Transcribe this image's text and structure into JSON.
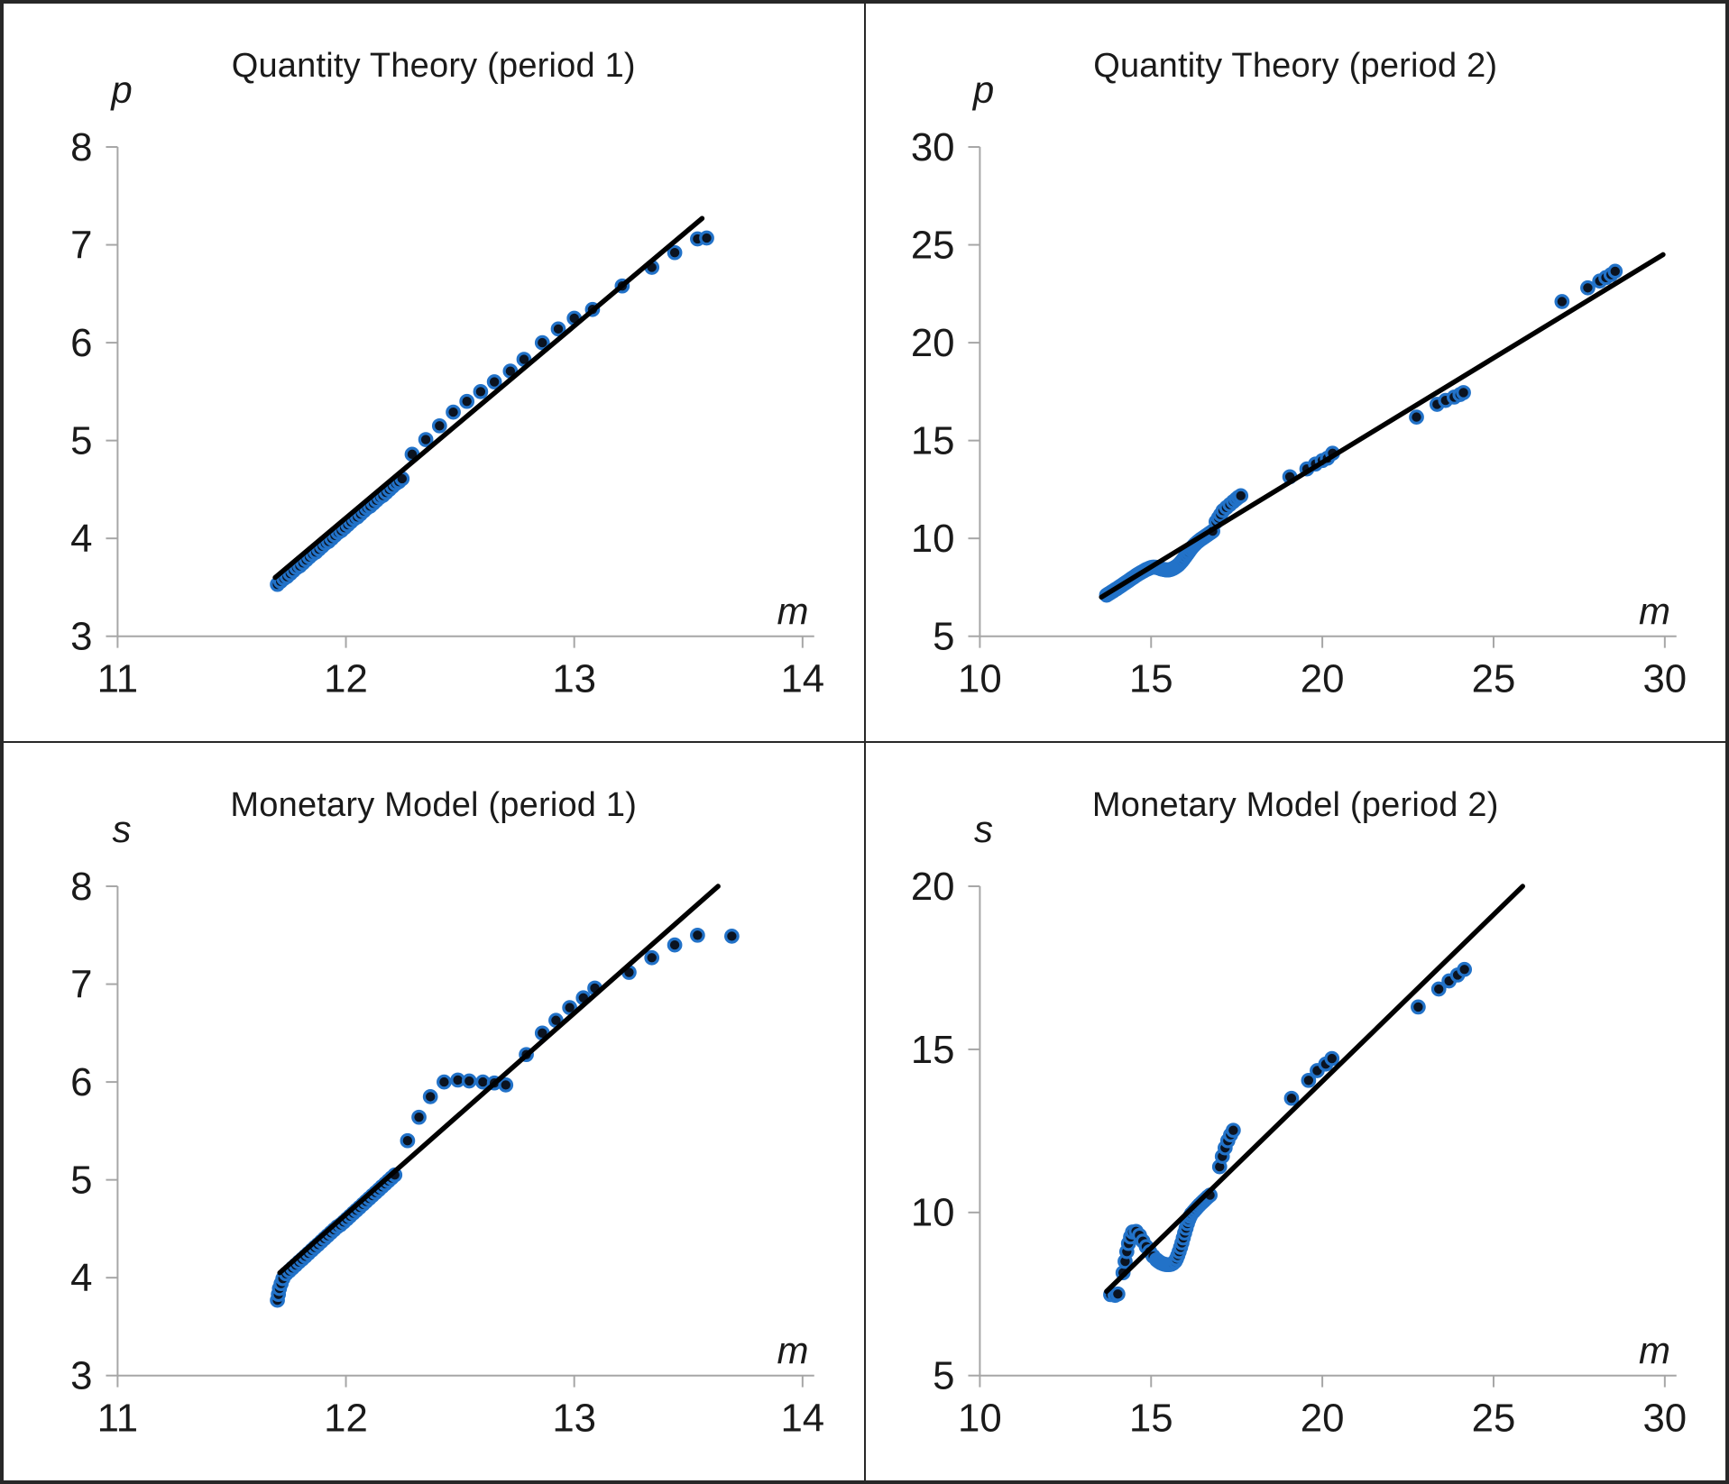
{
  "style": {
    "marker_fill": "#0b1320",
    "marker_stroke": "#2272c8",
    "trend_color": "#000000",
    "axis_color": "#a6a6a6",
    "text_color": "#1a1a1a",
    "background": "#ffffff",
    "border_color": "#282828"
  },
  "chart_data": [
    {
      "type": "scatter",
      "title": "Quantity Theory (period 1)",
      "ylabel": "p",
      "xlabel": "m",
      "xlim": [
        11,
        14
      ],
      "ylim": [
        3,
        8
      ],
      "xticks": [
        11,
        12,
        13,
        14
      ],
      "yticks": [
        3,
        4,
        5,
        6,
        7,
        8
      ],
      "grid": false,
      "legend": false,
      "trend_line": {
        "x1": 11.69,
        "y1": 3.6,
        "x2": 13.56,
        "y2": 7.27
      },
      "points": [
        [
          11.7,
          3.53
        ],
        [
          11.714,
          3.56
        ],
        [
          11.728,
          3.59
        ],
        [
          11.742,
          3.61
        ],
        [
          11.756,
          3.64
        ],
        [
          11.77,
          3.67
        ],
        [
          11.784,
          3.7
        ],
        [
          11.798,
          3.72
        ],
        [
          11.812,
          3.75
        ],
        [
          11.826,
          3.78
        ],
        [
          11.84,
          3.81
        ],
        [
          11.854,
          3.84
        ],
        [
          11.868,
          3.86
        ],
        [
          11.882,
          3.89
        ],
        [
          11.896,
          3.92
        ],
        [
          11.91,
          3.95
        ],
        [
          11.924,
          3.97
        ],
        [
          11.938,
          4.0
        ],
        [
          11.952,
          4.03
        ],
        [
          11.966,
          4.06
        ],
        [
          11.98,
          4.08
        ],
        [
          11.994,
          4.11
        ],
        [
          12.008,
          4.14
        ],
        [
          12.022,
          4.17
        ],
        [
          12.036,
          4.2
        ],
        [
          12.05,
          4.22
        ],
        [
          12.064,
          4.25
        ],
        [
          12.078,
          4.28
        ],
        [
          12.092,
          4.31
        ],
        [
          12.106,
          4.33
        ],
        [
          12.12,
          4.36
        ],
        [
          12.134,
          4.39
        ],
        [
          12.148,
          4.42
        ],
        [
          12.162,
          4.44
        ],
        [
          12.176,
          4.47
        ],
        [
          12.19,
          4.5
        ],
        [
          12.204,
          4.53
        ],
        [
          12.218,
          4.56
        ],
        [
          12.232,
          4.58
        ],
        [
          12.246,
          4.61
        ],
        [
          12.29,
          4.86
        ],
        [
          12.35,
          5.01
        ],
        [
          12.41,
          5.15
        ],
        [
          12.47,
          5.29
        ],
        [
          12.53,
          5.4
        ],
        [
          12.59,
          5.5
        ],
        [
          12.65,
          5.6
        ],
        [
          12.72,
          5.71
        ],
        [
          12.78,
          5.83
        ],
        [
          12.86,
          6.0
        ],
        [
          12.93,
          6.14
        ],
        [
          13.0,
          6.25
        ],
        [
          13.08,
          6.34
        ],
        [
          13.21,
          6.58
        ],
        [
          13.34,
          6.77
        ],
        [
          13.44,
          6.92
        ],
        [
          13.54,
          7.06
        ],
        [
          13.58,
          7.07
        ]
      ]
    },
    {
      "type": "scatter",
      "title": "Quantity Theory (period 2)",
      "ylabel": "p",
      "xlabel": "m",
      "xlim": [
        10,
        30
      ],
      "ylim": [
        5,
        30
      ],
      "xticks": [
        10,
        15,
        20,
        25,
        30
      ],
      "yticks": [
        5,
        10,
        15,
        20,
        25,
        30
      ],
      "grid": false,
      "legend": false,
      "trend_line": {
        "x1": 13.55,
        "y1": 7.0,
        "x2": 29.95,
        "y2": 24.5
      },
      "points": [
        [
          13.7,
          7.1
        ],
        [
          13.75,
          7.16
        ],
        [
          13.8,
          7.21
        ],
        [
          13.85,
          7.27
        ],
        [
          13.9,
          7.32
        ],
        [
          13.95,
          7.38
        ],
        [
          14.0,
          7.43
        ],
        [
          14.05,
          7.49
        ],
        [
          14.1,
          7.55
        ],
        [
          14.15,
          7.61
        ],
        [
          14.2,
          7.67
        ],
        [
          14.25,
          7.73
        ],
        [
          14.3,
          7.79
        ],
        [
          14.35,
          7.85
        ],
        [
          14.4,
          7.91
        ],
        [
          14.45,
          7.97
        ],
        [
          14.5,
          8.03
        ],
        [
          14.55,
          8.09
        ],
        [
          14.6,
          8.15
        ],
        [
          14.65,
          8.2
        ],
        [
          14.7,
          8.25
        ],
        [
          14.75,
          8.3
        ],
        [
          14.8,
          8.35
        ],
        [
          14.85,
          8.4
        ],
        [
          14.9,
          8.44
        ],
        [
          14.95,
          8.48
        ],
        [
          15.0,
          8.51
        ],
        [
          15.05,
          8.53
        ],
        [
          15.1,
          8.53
        ],
        [
          15.15,
          8.52
        ],
        [
          15.2,
          8.5
        ],
        [
          15.25,
          8.47
        ],
        [
          15.3,
          8.44
        ],
        [
          15.35,
          8.42
        ],
        [
          15.4,
          8.4
        ],
        [
          15.45,
          8.39
        ],
        [
          15.5,
          8.39
        ],
        [
          15.55,
          8.4
        ],
        [
          15.6,
          8.43
        ],
        [
          15.65,
          8.47
        ],
        [
          15.7,
          8.52
        ],
        [
          15.75,
          8.58
        ],
        [
          15.8,
          8.65
        ],
        [
          15.85,
          8.74
        ],
        [
          15.9,
          8.84
        ],
        [
          15.95,
          8.95
        ],
        [
          16.0,
          9.07
        ],
        [
          16.05,
          9.19
        ],
        [
          16.1,
          9.31
        ],
        [
          16.15,
          9.43
        ],
        [
          16.2,
          9.54
        ],
        [
          16.25,
          9.64
        ],
        [
          16.3,
          9.73
        ],
        [
          16.35,
          9.81
        ],
        [
          16.4,
          9.88
        ],
        [
          16.45,
          9.95
        ],
        [
          16.5,
          10.01
        ],
        [
          16.55,
          10.07
        ],
        [
          16.6,
          10.13
        ],
        [
          16.65,
          10.19
        ],
        [
          16.7,
          10.25
        ],
        [
          16.75,
          10.31
        ],
        [
          16.8,
          10.37
        ],
        [
          16.9,
          10.85
        ],
        [
          16.97,
          11.05
        ],
        [
          17.03,
          11.22
        ],
        [
          17.1,
          11.42
        ],
        [
          17.2,
          11.58
        ],
        [
          17.3,
          11.73
        ],
        [
          17.4,
          11.88
        ],
        [
          17.48,
          12.0
        ],
        [
          17.55,
          12.1
        ],
        [
          17.62,
          12.18
        ],
        [
          19.05,
          13.15
        ],
        [
          19.55,
          13.55
        ],
        [
          19.8,
          13.8
        ],
        [
          20.0,
          13.98
        ],
        [
          20.15,
          14.1
        ],
        [
          20.3,
          14.35
        ],
        [
          22.75,
          16.2
        ],
        [
          23.35,
          16.85
        ],
        [
          23.6,
          17.05
        ],
        [
          23.85,
          17.22
        ],
        [
          24.02,
          17.35
        ],
        [
          24.12,
          17.45
        ],
        [
          27.0,
          22.1
        ],
        [
          27.75,
          22.8
        ],
        [
          28.1,
          23.15
        ],
        [
          28.28,
          23.33
        ],
        [
          28.43,
          23.48
        ],
        [
          28.55,
          23.65
        ]
      ]
    },
    {
      "type": "scatter",
      "title": "Monetary Model (period 1)",
      "ylabel": "s",
      "xlabel": "m",
      "xlim": [
        11,
        14
      ],
      "ylim": [
        3,
        8
      ],
      "xticks": [
        11,
        12,
        13,
        14
      ],
      "yticks": [
        3,
        4,
        5,
        6,
        7,
        8
      ],
      "grid": false,
      "legend": false,
      "trend_line": {
        "x1": 11.71,
        "y1": 4.05,
        "x2": 13.63,
        "y2": 8.0
      },
      "points": [
        [
          11.7,
          3.77
        ],
        [
          11.704,
          3.83
        ],
        [
          11.709,
          3.89
        ],
        [
          11.716,
          3.94
        ],
        [
          11.724,
          3.99
        ],
        [
          11.738,
          4.04
        ],
        [
          11.752,
          4.07
        ],
        [
          11.766,
          4.1
        ],
        [
          11.78,
          4.13
        ],
        [
          11.794,
          4.16
        ],
        [
          11.808,
          4.19
        ],
        [
          11.822,
          4.22
        ],
        [
          11.836,
          4.25
        ],
        [
          11.85,
          4.28
        ],
        [
          11.864,
          4.31
        ],
        [
          11.878,
          4.34
        ],
        [
          11.892,
          4.37
        ],
        [
          11.906,
          4.4
        ],
        [
          11.92,
          4.43
        ],
        [
          11.934,
          4.46
        ],
        [
          11.948,
          4.49
        ],
        [
          11.962,
          4.52
        ],
        [
          11.976,
          4.54
        ],
        [
          11.99,
          4.57
        ],
        [
          12.004,
          4.6
        ],
        [
          12.018,
          4.63
        ],
        [
          12.032,
          4.66
        ],
        [
          12.046,
          4.69
        ],
        [
          12.06,
          4.72
        ],
        [
          12.074,
          4.75
        ],
        [
          12.088,
          4.78
        ],
        [
          12.102,
          4.81
        ],
        [
          12.116,
          4.84
        ],
        [
          12.13,
          4.87
        ],
        [
          12.144,
          4.9
        ],
        [
          12.158,
          4.93
        ],
        [
          12.172,
          4.96
        ],
        [
          12.186,
          4.99
        ],
        [
          12.2,
          5.02
        ],
        [
          12.214,
          5.05
        ],
        [
          12.27,
          5.4
        ],
        [
          12.32,
          5.64
        ],
        [
          12.37,
          5.85
        ],
        [
          12.43,
          6.0
        ],
        [
          12.49,
          6.02
        ],
        [
          12.54,
          6.01
        ],
        [
          12.6,
          6.0
        ],
        [
          12.65,
          5.99
        ],
        [
          12.7,
          5.97
        ],
        [
          12.79,
          6.28
        ],
        [
          12.86,
          6.5
        ],
        [
          12.92,
          6.63
        ],
        [
          12.98,
          6.76
        ],
        [
          13.04,
          6.86
        ],
        [
          13.09,
          6.96
        ],
        [
          13.24,
          7.12
        ],
        [
          13.34,
          7.27
        ],
        [
          13.44,
          7.4
        ],
        [
          13.54,
          7.5
        ],
        [
          13.69,
          7.49
        ]
      ]
    },
    {
      "type": "scatter",
      "title": "Monetary Model (period 2)",
      "ylabel": "s",
      "xlabel": "m",
      "xlim": [
        10,
        30
      ],
      "ylim": [
        5,
        20
      ],
      "xticks": [
        10,
        15,
        20,
        25,
        30
      ],
      "yticks": [
        5,
        10,
        15,
        20
      ],
      "grid": false,
      "legend": false,
      "trend_line": {
        "x1": 13.7,
        "y1": 7.58,
        "x2": 25.85,
        "y2": 20.0
      },
      "points": [
        [
          13.82,
          7.48
        ],
        [
          13.95,
          7.46
        ],
        [
          14.03,
          7.5
        ],
        [
          14.18,
          8.15
        ],
        [
          14.24,
          8.5
        ],
        [
          14.29,
          8.8
        ],
        [
          14.34,
          9.05
        ],
        [
          14.4,
          9.25
        ],
        [
          14.46,
          9.4
        ],
        [
          14.56,
          9.42
        ],
        [
          14.66,
          9.3
        ],
        [
          14.76,
          9.12
        ],
        [
          14.86,
          8.95
        ],
        [
          14.96,
          8.8
        ],
        [
          15.06,
          8.66
        ],
        [
          15.16,
          8.55
        ],
        [
          15.22,
          8.5
        ],
        [
          15.28,
          8.46
        ],
        [
          15.34,
          8.43
        ],
        [
          15.4,
          8.41
        ],
        [
          15.46,
          8.4
        ],
        [
          15.52,
          8.4
        ],
        [
          15.58,
          8.41
        ],
        [
          15.64,
          8.44
        ],
        [
          15.7,
          8.5
        ],
        [
          15.74,
          8.58
        ],
        [
          15.78,
          8.68
        ],
        [
          15.82,
          8.8
        ],
        [
          15.86,
          8.93
        ],
        [
          15.9,
          9.07
        ],
        [
          15.94,
          9.22
        ],
        [
          15.98,
          9.37
        ],
        [
          16.02,
          9.52
        ],
        [
          16.06,
          9.66
        ],
        [
          16.1,
          9.78
        ],
        [
          16.14,
          9.88
        ],
        [
          16.18,
          9.96
        ],
        [
          16.24,
          10.03
        ],
        [
          16.3,
          10.1
        ],
        [
          16.36,
          10.17
        ],
        [
          16.42,
          10.24
        ],
        [
          16.48,
          10.3
        ],
        [
          16.54,
          10.36
        ],
        [
          16.6,
          10.42
        ],
        [
          16.66,
          10.48
        ],
        [
          16.72,
          10.53
        ],
        [
          17.0,
          11.4
        ],
        [
          17.08,
          11.72
        ],
        [
          17.16,
          11.98
        ],
        [
          17.24,
          12.2
        ],
        [
          17.32,
          12.38
        ],
        [
          17.4,
          12.52
        ],
        [
          19.1,
          13.5
        ],
        [
          19.6,
          14.05
        ],
        [
          19.85,
          14.35
        ],
        [
          20.1,
          14.55
        ],
        [
          20.28,
          14.72
        ],
        [
          22.8,
          16.3
        ],
        [
          23.4,
          16.85
        ],
        [
          23.7,
          17.1
        ],
        [
          23.95,
          17.28
        ],
        [
          24.15,
          17.45
        ]
      ]
    }
  ]
}
